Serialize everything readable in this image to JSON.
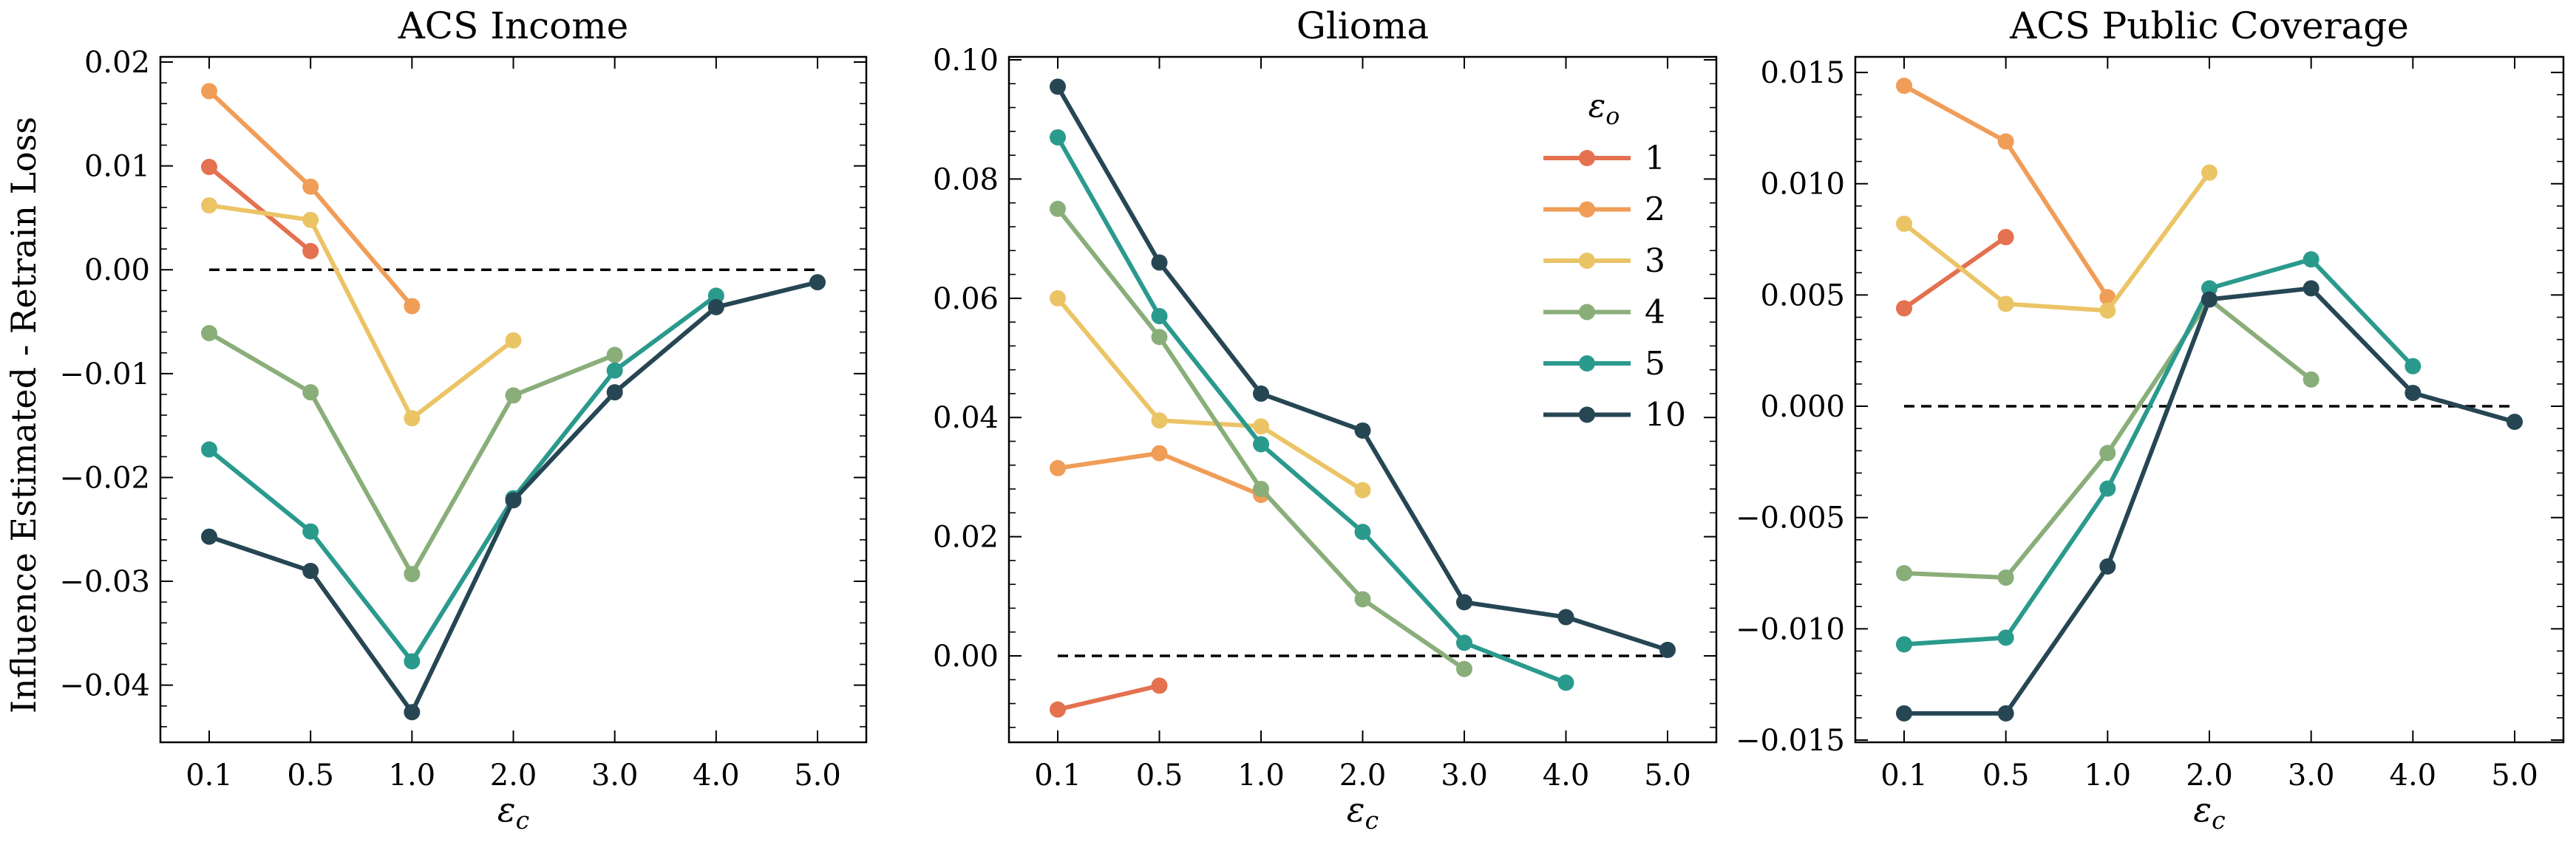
{
  "colors": {
    "series_1": "#E4714F",
    "series_2": "#F09D58",
    "series_3": "#EBC466",
    "series_4": "#8AAE7A",
    "series_5": "#2A9A8D",
    "series_10": "#264653",
    "reference_line": "#000000",
    "frame": "#000000"
  },
  "figure": {
    "ylabel": "Influence Estimated - Retrain Loss",
    "legend_title": "ε_o",
    "legend_location": "upper-right of Glioma panel"
  },
  "chart_data": [
    {
      "type": "line",
      "title": "ACS Income",
      "xlabel": "ε_c",
      "ylabel": "Influence Estimated - Retrain Loss",
      "categories": [
        "0.1",
        "0.5",
        "1.0",
        "2.0",
        "3.0",
        "4.0",
        "5.0"
      ],
      "ylim": [
        -0.0455,
        0.0205
      ],
      "yticks": [
        -0.04,
        -0.03,
        -0.02,
        -0.01,
        0.0,
        0.01,
        0.02
      ],
      "ytick_labels": [
        "−0.04",
        "−0.03",
        "−0.02",
        "−0.01",
        "0.00",
        "0.01",
        "0.02"
      ],
      "reference_line": 0.0,
      "series": [
        {
          "name": "1",
          "values": [
            0.0099,
            0.0018,
            null,
            null,
            null,
            null,
            null
          ]
        },
        {
          "name": "2",
          "values": [
            0.0172,
            0.008,
            -0.0035,
            null,
            null,
            null,
            null
          ]
        },
        {
          "name": "3",
          "values": [
            0.0062,
            0.0048,
            -0.0143,
            -0.0068,
            null,
            null,
            null
          ]
        },
        {
          "name": "4",
          "values": [
            -0.0061,
            -0.0118,
            -0.0293,
            -0.0121,
            -0.0082,
            null,
            null
          ]
        },
        {
          "name": "5",
          "values": [
            -0.0173,
            -0.0252,
            -0.0377,
            -0.022,
            -0.0097,
            -0.0025,
            null
          ]
        },
        {
          "name": "10",
          "values": [
            -0.0257,
            -0.029,
            -0.0426,
            -0.0222,
            -0.0118,
            -0.0036,
            -0.0012
          ]
        }
      ]
    },
    {
      "type": "line",
      "title": "Glioma",
      "xlabel": "ε_c",
      "categories": [
        "0.1",
        "0.5",
        "1.0",
        "2.0",
        "3.0",
        "4.0",
        "5.0"
      ],
      "ylim": [
        -0.0145,
        0.1005
      ],
      "yticks": [
        0.0,
        0.02,
        0.04,
        0.06,
        0.08,
        0.1
      ],
      "ytick_labels": [
        "0.00",
        "0.02",
        "0.04",
        "0.06",
        "0.08",
        "0.10"
      ],
      "reference_line": 0.0,
      "series": [
        {
          "name": "1",
          "values": [
            -0.009,
            -0.005,
            null,
            null,
            null,
            null,
            null
          ]
        },
        {
          "name": "2",
          "values": [
            0.0315,
            0.034,
            0.027,
            null,
            null,
            null,
            null
          ]
        },
        {
          "name": "3",
          "values": [
            0.06,
            0.0395,
            0.0385,
            0.0278,
            null,
            null,
            null
          ]
        },
        {
          "name": "4",
          "values": [
            0.075,
            0.0535,
            0.028,
            0.0095,
            -0.0022,
            null,
            null
          ]
        },
        {
          "name": "5",
          "values": [
            0.087,
            0.057,
            0.0355,
            0.0208,
            0.0022,
            -0.0045,
            null
          ]
        },
        {
          "name": "10",
          "values": [
            0.0955,
            0.066,
            0.044,
            0.0378,
            0.009,
            0.0065,
            0.001
          ]
        }
      ]
    },
    {
      "type": "line",
      "title": "ACS Public Coverage",
      "xlabel": "ε_c",
      "categories": [
        "0.1",
        "0.5",
        "1.0",
        "2.0",
        "3.0",
        "4.0",
        "5.0"
      ],
      "ylim": [
        -0.0151,
        0.0157
      ],
      "yticks": [
        -0.015,
        -0.01,
        -0.005,
        0.0,
        0.005,
        0.01,
        0.015
      ],
      "ytick_labels": [
        "−0.015",
        "−0.010",
        "−0.005",
        "0.000",
        "0.005",
        "0.010",
        "0.015"
      ],
      "reference_line": 0.0,
      "series": [
        {
          "name": "1",
          "values": [
            0.0044,
            0.0076,
            null,
            null,
            null,
            null,
            null
          ]
        },
        {
          "name": "2",
          "values": [
            0.0144,
            0.0119,
            0.0049,
            null,
            null,
            null,
            null
          ]
        },
        {
          "name": "3",
          "values": [
            0.0082,
            0.0046,
            0.0043,
            0.0105,
            null,
            null,
            null
          ]
        },
        {
          "name": "4",
          "values": [
            -0.0075,
            -0.0077,
            -0.0021,
            0.0048,
            0.0012,
            null,
            null
          ]
        },
        {
          "name": "5",
          "values": [
            -0.0107,
            -0.0104,
            -0.0037,
            0.0053,
            0.0066,
            0.0018,
            null
          ]
        },
        {
          "name": "10",
          "values": [
            -0.0138,
            -0.0138,
            -0.0072,
            0.0048,
            0.0053,
            0.0006,
            -0.0007
          ]
        }
      ]
    }
  ]
}
